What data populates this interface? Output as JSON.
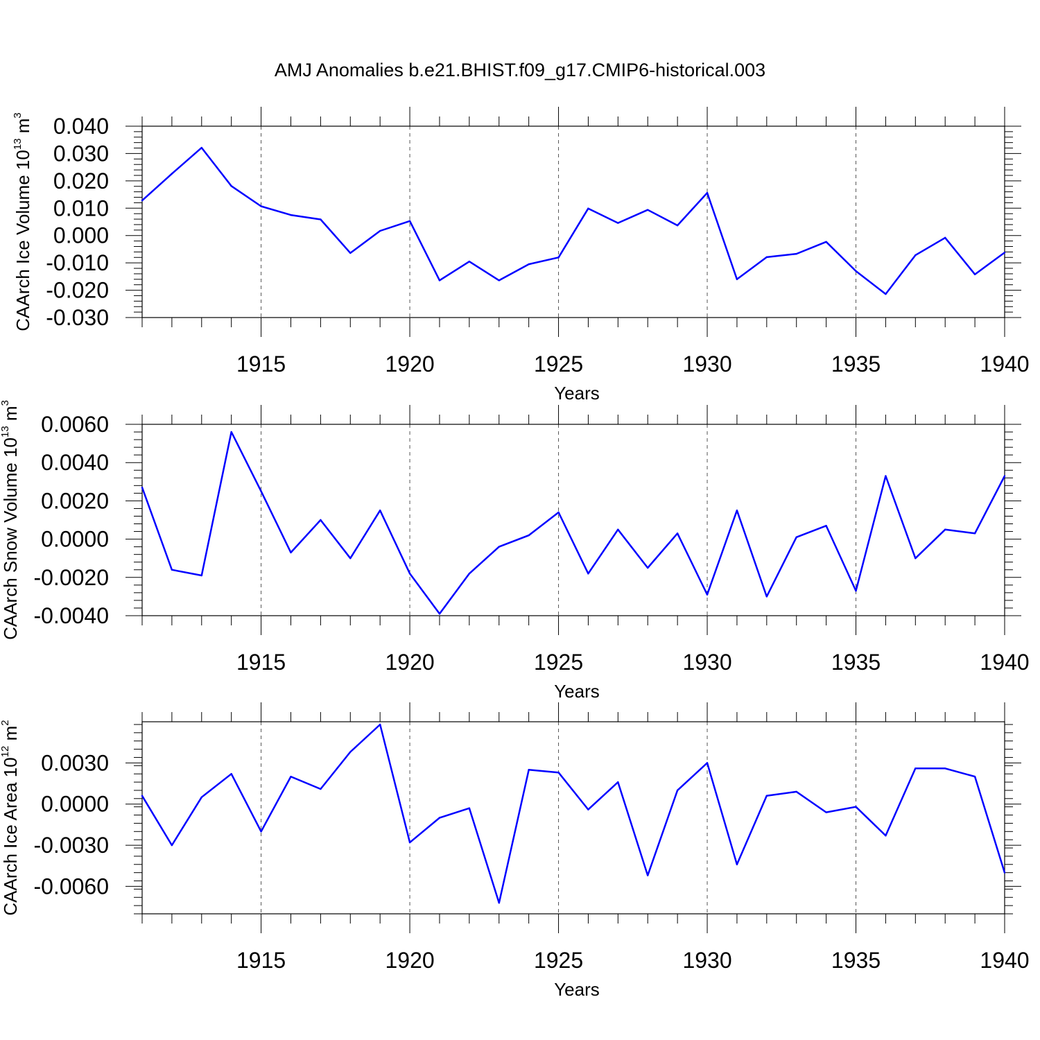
{
  "title": "AMJ Anomalies b.e21.BHIST.f09_g17.CMIP6-historical.003",
  "chart_data": [
    {
      "type": "line",
      "xlabel": "Years",
      "ylabel": {
        "base": "CAArch Ice Volume 10",
        "exp": "13",
        "unit": " m",
        "unit_exp": "3"
      },
      "xlim": [
        1911,
        1940
      ],
      "ylim": [
        -0.03,
        0.04
      ],
      "xticks": [
        1915,
        1920,
        1925,
        1930,
        1935,
        1940
      ],
      "xtick_labels": [
        "1915",
        "1920",
        "1925",
        "1930",
        "1935",
        "1940"
      ],
      "yticks": [
        0.04,
        0.03,
        0.02,
        0.01,
        0.0,
        -0.01,
        -0.02,
        -0.03
      ],
      "ytick_labels": [
        "0.040",
        "0.030",
        "0.020",
        "0.010",
        "0.000",
        "-0.010",
        "-0.020",
        "-0.030"
      ],
      "grid": "vertical-dashed",
      "color": "#0000ff",
      "x": [
        1911,
        1912,
        1913,
        1914,
        1915,
        1916,
        1917,
        1918,
        1919,
        1920,
        1921,
        1922,
        1923,
        1924,
        1925,
        1926,
        1927,
        1928,
        1929,
        1930,
        1931,
        1932,
        1933,
        1934,
        1935,
        1936,
        1937,
        1938,
        1939,
        1940
      ],
      "y": [
        0.0128,
        0.0226,
        0.0321,
        0.0181,
        0.0107,
        0.0075,
        0.0059,
        -0.0064,
        0.0017,
        0.0053,
        -0.0164,
        -0.0095,
        -0.0164,
        -0.0105,
        -0.008,
        0.0099,
        0.0046,
        0.0094,
        0.0037,
        0.0156,
        -0.016,
        -0.0079,
        -0.0067,
        -0.0023,
        -0.013,
        -0.0214,
        -0.0072,
        -0.0008,
        -0.0142,
        -0.0062
      ]
    },
    {
      "type": "line",
      "xlabel": "Years",
      "ylabel": {
        "base": "CAArch Snow Volume 10",
        "exp": "13",
        "unit": " m",
        "unit_exp": "3"
      },
      "xlim": [
        1911,
        1940
      ],
      "ylim": [
        -0.004,
        0.006
      ],
      "xticks": [
        1915,
        1920,
        1925,
        1930,
        1935,
        1940
      ],
      "xtick_labels": [
        "1915",
        "1920",
        "1925",
        "1930",
        "1935",
        "1940"
      ],
      "yticks": [
        0.006,
        0.004,
        0.002,
        0.0,
        -0.002,
        -0.004
      ],
      "ytick_labels": [
        "0.0060",
        "0.0040",
        "0.0020",
        "0.0000",
        "-0.0020",
        "-0.0040"
      ],
      "grid": "vertical-dashed",
      "color": "#0000ff",
      "x": [
        1911,
        1912,
        1913,
        1914,
        1915,
        1916,
        1917,
        1918,
        1919,
        1920,
        1921,
        1922,
        1923,
        1924,
        1925,
        1926,
        1927,
        1928,
        1929,
        1930,
        1931,
        1932,
        1933,
        1934,
        1935,
        1936,
        1937,
        1938,
        1939,
        1940
      ],
      "y": [
        0.0027,
        -0.0016,
        -0.0019,
        0.0056,
        0.0025,
        -0.0007,
        0.001,
        -0.001,
        0.0015,
        -0.0018,
        -0.0039,
        -0.0018,
        -0.0004,
        0.0002,
        0.0014,
        -0.0018,
        0.0005,
        -0.0015,
        0.0003,
        -0.0029,
        0.0015,
        -0.003,
        0.0001,
        0.0007,
        -0.0027,
        0.0033,
        -0.001,
        0.0005,
        0.0003,
        0.0033
      ]
    },
    {
      "type": "line",
      "xlabel": "Years",
      "ylabel": {
        "base": "CAArch Ice Area 10",
        "exp": "12",
        "unit": " m",
        "unit_exp": "2"
      },
      "xlim": [
        1911,
        1940
      ],
      "ylim": [
        -0.008,
        0.006
      ],
      "xticks": [
        1915,
        1920,
        1925,
        1930,
        1935,
        1940
      ],
      "xtick_labels": [
        "1915",
        "1920",
        "1925",
        "1930",
        "1935",
        "1940"
      ],
      "yticks": [
        0.003,
        0.0,
        -0.003,
        -0.006
      ],
      "ytick_labels": [
        "0.0030",
        "0.0000",
        "-0.0030",
        "-0.0060"
      ],
      "minor_yticks": [
        0.006,
        0.0045,
        0.0015,
        -0.0015,
        -0.0045,
        -0.0075
      ],
      "grid": "vertical-dashed",
      "color": "#0000ff",
      "x": [
        1911,
        1912,
        1913,
        1914,
        1915,
        1916,
        1917,
        1918,
        1919,
        1920,
        1921,
        1922,
        1923,
        1924,
        1925,
        1926,
        1927,
        1928,
        1929,
        1930,
        1931,
        1932,
        1933,
        1934,
        1935,
        1936,
        1937,
        1938,
        1939,
        1940
      ],
      "y": [
        0.0006,
        -0.003,
        0.0005,
        0.0022,
        -0.002,
        0.002,
        0.0011,
        0.0038,
        0.0058,
        -0.0028,
        -0.001,
        -0.0003,
        -0.0072,
        0.0025,
        0.0023,
        -0.0004,
        0.0016,
        -0.0052,
        0.001,
        0.003,
        -0.0044,
        0.0006,
        0.0009,
        -0.0006,
        -0.0002,
        -0.0023,
        0.0026,
        0.0026,
        0.002,
        -0.005
      ]
    }
  ]
}
